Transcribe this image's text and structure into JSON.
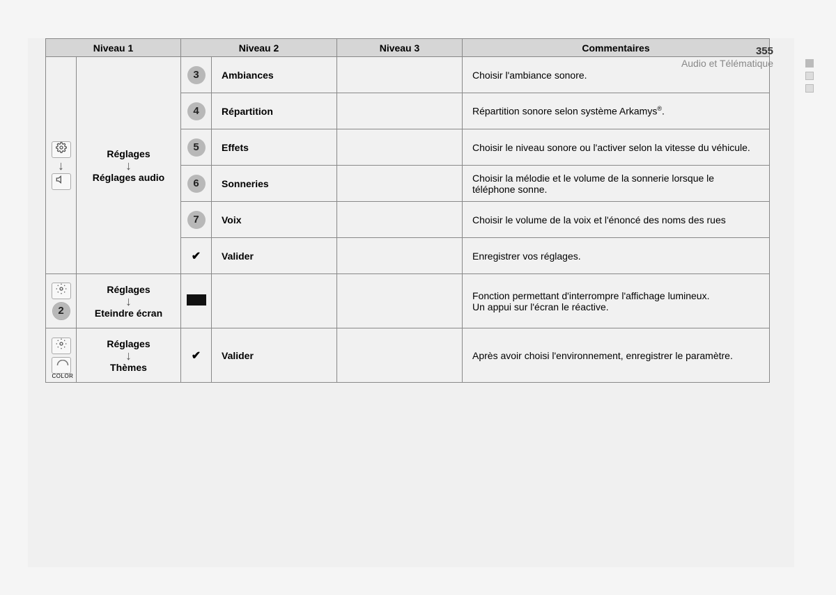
{
  "page_number": "355",
  "breadcrumb": "Audio et Télématique",
  "headers": {
    "n1": "Niveau 1",
    "n2": "Niveau 2",
    "n3": "Niveau 3",
    "comments": "Commentaires"
  },
  "section1": {
    "path_top": "Réglages",
    "path_bottom": "Réglages audio",
    "rows": [
      {
        "badge": "3",
        "label": "Ambiances",
        "comment": "Choisir l'ambiance sonore."
      },
      {
        "badge": "4",
        "label": "Répartition",
        "comment_html": "Répartition sonore selon système Arkamys<span class='sup'>®</span>."
      },
      {
        "badge": "5",
        "label": "Effets",
        "comment": "Choisir le niveau sonore ou l'activer selon la vitesse du véhicule."
      },
      {
        "badge": "6",
        "label": "Sonneries",
        "comment": "Choisir la mélodie et le volume de la sonnerie lorsque le téléphone sonne."
      },
      {
        "badge": "7",
        "label": "Voix",
        "comment": "Choisir le volume de la voix et l'énoncé des noms des rues"
      },
      {
        "badge_check": true,
        "label": "Valider",
        "comment": "Enregistrer vos réglages."
      }
    ]
  },
  "section2": {
    "path_top": "Réglages",
    "path_bottom": "Eteindre écran",
    "badge_num": "2",
    "comment": "Fonction permettant d'interrompre l'affichage lumineux.\nUn appui sur l'écran le réactive."
  },
  "section3": {
    "path_top": "Réglages",
    "path_bottom": "Thèmes",
    "label": "Valider",
    "color_label": "COLOR",
    "comment": "Après avoir choisi l'environnement, enregistrer le paramètre."
  }
}
